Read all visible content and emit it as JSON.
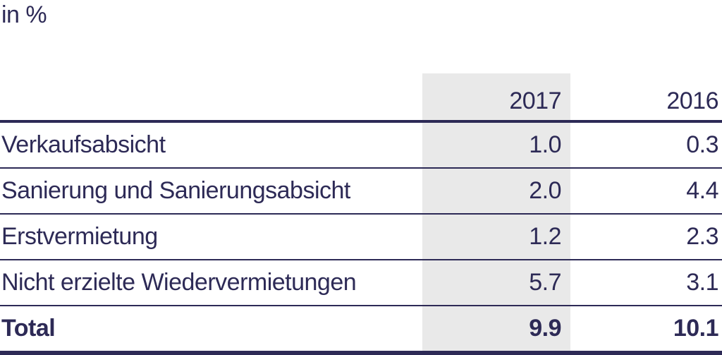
{
  "page": {
    "unit_label": "in %"
  },
  "colors": {
    "text_navy": "#2d2a56",
    "band_gray": "#e9e9e9"
  },
  "table": {
    "column_headers": [
      "2017",
      "2016"
    ],
    "rows": [
      {
        "label": "Verkaufsabsicht",
        "v2017": "1.0",
        "v2016": "0.3"
      },
      {
        "label": "Sanierung und Sanierungsabsicht",
        "v2017": "2.0",
        "v2016": "4.4"
      },
      {
        "label": "Erstvermietung",
        "v2017": "1.2",
        "v2016": "2.3"
      },
      {
        "label": "Nicht erzielte Wiedervermietungen",
        "v2017": "5.7",
        "v2016": "3.1"
      }
    ],
    "total_row": {
      "label": "Total",
      "v2017": "9.9",
      "v2016": "10.1"
    }
  },
  "chart_data": {
    "type": "table",
    "title": "in %",
    "columns": [
      "",
      "2017",
      "2016"
    ],
    "rows": [
      [
        "Verkaufsabsicht",
        1.0,
        0.3
      ],
      [
        "Sanierung und Sanierungsabsicht",
        2.0,
        4.4
      ],
      [
        "Erstvermietung",
        1.2,
        2.3
      ],
      [
        "Nicht erzielte Wiedervermietungen",
        5.7,
        3.1
      ],
      [
        "Total",
        9.9,
        10.1
      ]
    ]
  }
}
